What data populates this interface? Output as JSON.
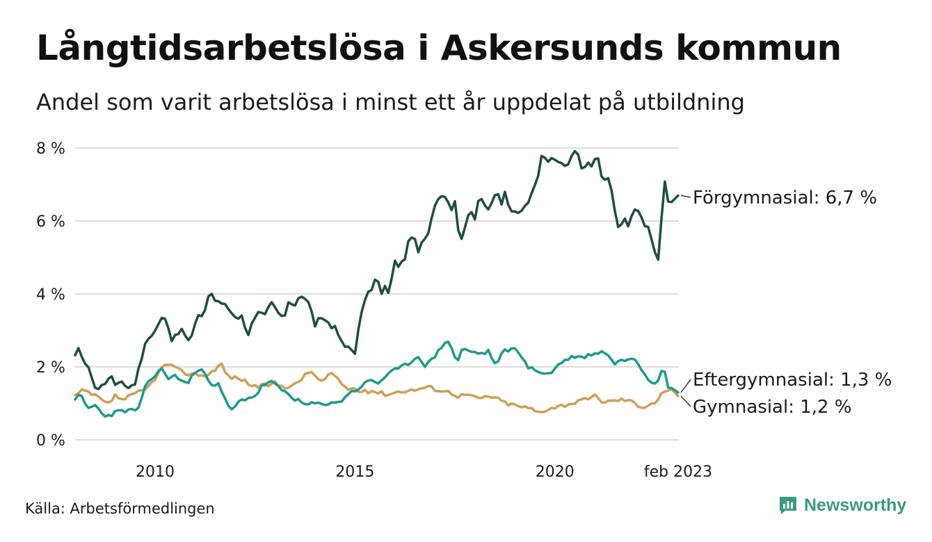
{
  "title": "Långtidsarbetslösa i Askersunds kommun",
  "subtitle": "Andel som varit arbetslösa i minst ett år uppdelat på utbildning",
  "source": "Källa: Arbetsförmedlingen",
  "brand": "Newsworthy",
  "colors": {
    "forgymnasial": "#1f4d41",
    "eftergymnasial": "#1b9a8c",
    "gymnasial": "#cda053",
    "grid": "#dcdcdc",
    "brand": "#3a9a7e"
  },
  "chart_data": {
    "type": "line",
    "x_unit": "month",
    "x_start": "2008-01",
    "x_end": "2023-02",
    "xlim": [
      2008.0,
      2023.1
    ],
    "ylim": [
      0,
      8
    ],
    "yticks": [
      {
        "value": 0,
        "label": "0 %"
      },
      {
        "value": 2,
        "label": "2 %"
      },
      {
        "value": 4,
        "label": "4 %"
      },
      {
        "value": 6,
        "label": "6 %"
      },
      {
        "value": 8,
        "label": "8 %"
      }
    ],
    "xticks": [
      {
        "value": 2010.0,
        "label": "2010"
      },
      {
        "value": 2015.0,
        "label": "2015"
      },
      {
        "value": 2020.0,
        "label": "2020"
      },
      {
        "value": 2023.083,
        "label": "feb 2023"
      }
    ],
    "grid": true,
    "series": [
      {
        "key": "forgymnasial",
        "name": "Förgymnasial",
        "end_label": "Förgymnasial: 6,7 %",
        "anchors": [
          [
            2008.0,
            2.3
          ],
          [
            2008.1,
            2.5
          ],
          [
            2008.2,
            2.2
          ],
          [
            2008.35,
            2.0
          ],
          [
            2008.45,
            1.5
          ],
          [
            2008.6,
            1.4
          ],
          [
            2008.75,
            1.55
          ],
          [
            2008.9,
            1.75
          ],
          [
            2009.0,
            1.45
          ],
          [
            2009.15,
            1.65
          ],
          [
            2009.3,
            1.4
          ],
          [
            2009.5,
            1.55
          ],
          [
            2009.65,
            2.2
          ],
          [
            2009.8,
            2.8
          ],
          [
            2009.95,
            2.9
          ],
          [
            2010.05,
            3.1
          ],
          [
            2010.2,
            3.4
          ],
          [
            2010.3,
            3.2
          ],
          [
            2010.4,
            2.7
          ],
          [
            2010.55,
            2.9
          ],
          [
            2010.7,
            3.15
          ],
          [
            2010.8,
            2.6
          ],
          [
            2010.95,
            3.0
          ],
          [
            2011.1,
            3.45
          ],
          [
            2011.2,
            3.3
          ],
          [
            2011.3,
            3.85
          ],
          [
            2011.4,
            4.0
          ],
          [
            2011.5,
            3.8
          ],
          [
            2011.7,
            3.75
          ],
          [
            2011.9,
            3.45
          ],
          [
            2012.05,
            3.3
          ],
          [
            2012.2,
            3.4
          ],
          [
            2012.3,
            2.8
          ],
          [
            2012.45,
            3.3
          ],
          [
            2012.6,
            3.55
          ],
          [
            2012.75,
            3.4
          ],
          [
            2012.9,
            3.85
          ],
          [
            2013.05,
            3.5
          ],
          [
            2013.2,
            3.3
          ],
          [
            2013.35,
            3.8
          ],
          [
            2013.5,
            3.7
          ],
          [
            2013.65,
            3.95
          ],
          [
            2013.8,
            3.9
          ],
          [
            2013.9,
            3.55
          ],
          [
            2014.0,
            3.1
          ],
          [
            2014.1,
            3.45
          ],
          [
            2014.25,
            3.3
          ],
          [
            2014.4,
            3.05
          ],
          [
            2014.5,
            3.1
          ],
          [
            2014.6,
            2.8
          ],
          [
            2014.75,
            2.6
          ],
          [
            2014.9,
            2.5
          ],
          [
            2015.0,
            2.3
          ],
          [
            2015.05,
            2.9
          ],
          [
            2015.15,
            3.4
          ],
          [
            2015.3,
            4.0
          ],
          [
            2015.45,
            4.2
          ],
          [
            2015.55,
            4.5
          ],
          [
            2015.65,
            3.95
          ],
          [
            2015.75,
            4.2
          ],
          [
            2015.85,
            4.0
          ],
          [
            2016.0,
            4.9
          ],
          [
            2016.1,
            4.7
          ],
          [
            2016.25,
            5.0
          ],
          [
            2016.35,
            5.55
          ],
          [
            2016.5,
            5.5
          ],
          [
            2016.6,
            5.1
          ],
          [
            2016.7,
            5.6
          ],
          [
            2016.8,
            5.45
          ],
          [
            2016.95,
            6.3
          ],
          [
            2017.05,
            6.65
          ],
          [
            2017.3,
            6.6
          ],
          [
            2017.4,
            6.2
          ],
          [
            2017.5,
            6.55
          ],
          [
            2017.6,
            5.6
          ],
          [
            2017.7,
            5.5
          ],
          [
            2017.85,
            6.3
          ],
          [
            2018.0,
            6.1
          ],
          [
            2018.1,
            6.65
          ],
          [
            2018.2,
            6.55
          ],
          [
            2018.3,
            6.2
          ],
          [
            2018.45,
            6.6
          ],
          [
            2018.55,
            6.9
          ],
          [
            2018.65,
            6.4
          ],
          [
            2018.75,
            6.85
          ],
          [
            2018.9,
            6.2
          ],
          [
            2019.0,
            6.3
          ],
          [
            2019.15,
            6.25
          ],
          [
            2019.35,
            6.5
          ],
          [
            2019.5,
            7.0
          ],
          [
            2019.6,
            7.3
          ],
          [
            2019.7,
            7.95
          ],
          [
            2019.8,
            7.55
          ],
          [
            2019.95,
            7.8
          ],
          [
            2020.1,
            7.55
          ],
          [
            2020.2,
            7.6
          ],
          [
            2020.3,
            7.5
          ],
          [
            2020.45,
            7.8
          ],
          [
            2020.55,
            7.95
          ],
          [
            2020.7,
            7.25
          ],
          [
            2020.8,
            7.7
          ],
          [
            2020.95,
            7.4
          ],
          [
            2021.05,
            7.95
          ],
          [
            2021.15,
            7.3
          ],
          [
            2021.25,
            7.1
          ],
          [
            2021.3,
            7.3
          ],
          [
            2021.45,
            6.75
          ],
          [
            2021.55,
            5.9
          ],
          [
            2021.65,
            5.85
          ],
          [
            2021.75,
            6.1
          ],
          [
            2021.85,
            5.8
          ],
          [
            2021.95,
            6.25
          ],
          [
            2022.05,
            6.4
          ],
          [
            2022.2,
            5.95
          ],
          [
            2022.35,
            5.8
          ],
          [
            2022.5,
            5.1
          ],
          [
            2022.6,
            4.95
          ],
          [
            2022.7,
            6.7
          ],
          [
            2022.78,
            7.4
          ],
          [
            2022.85,
            6.3
          ],
          [
            2022.95,
            6.7
          ],
          [
            2023.03,
            6.55
          ],
          [
            2023.083,
            6.7
          ]
        ]
      },
      {
        "key": "eftergymnasial",
        "name": "Eftergymnasial",
        "end_label": "Eftergymnasial: 1,3 %",
        "anchors": [
          [
            2008.0,
            1.15
          ],
          [
            2008.15,
            1.2
          ],
          [
            2008.3,
            0.85
          ],
          [
            2008.5,
            0.95
          ],
          [
            2008.65,
            0.75
          ],
          [
            2008.8,
            0.65
          ],
          [
            2009.0,
            0.75
          ],
          [
            2009.2,
            0.8
          ],
          [
            2009.4,
            0.8
          ],
          [
            2009.6,
            0.85
          ],
          [
            2009.8,
            1.6
          ],
          [
            2010.0,
            1.75
          ],
          [
            2010.2,
            2.0
          ],
          [
            2010.35,
            1.6
          ],
          [
            2010.5,
            1.8
          ],
          [
            2010.65,
            1.6
          ],
          [
            2010.8,
            1.55
          ],
          [
            2010.95,
            1.8
          ],
          [
            2011.1,
            1.9
          ],
          [
            2011.25,
            1.85
          ],
          [
            2011.4,
            1.55
          ],
          [
            2011.6,
            1.5
          ],
          [
            2011.8,
            0.95
          ],
          [
            2011.95,
            0.8
          ],
          [
            2012.1,
            1.05
          ],
          [
            2012.3,
            1.15
          ],
          [
            2012.5,
            1.2
          ],
          [
            2012.7,
            1.5
          ],
          [
            2012.9,
            1.6
          ],
          [
            2013.05,
            1.45
          ],
          [
            2013.2,
            1.35
          ],
          [
            2013.4,
            1.2
          ],
          [
            2013.6,
            1.05
          ],
          [
            2013.8,
            0.95
          ],
          [
            2014.0,
            1.0
          ],
          [
            2014.2,
            0.95
          ],
          [
            2014.4,
            1.05
          ],
          [
            2014.6,
            1.0
          ],
          [
            2014.8,
            1.25
          ],
          [
            2015.0,
            1.35
          ],
          [
            2015.2,
            1.5
          ],
          [
            2015.4,
            1.65
          ],
          [
            2015.6,
            1.55
          ],
          [
            2015.8,
            1.8
          ],
          [
            2016.0,
            1.9
          ],
          [
            2016.2,
            2.0
          ],
          [
            2016.4,
            2.15
          ],
          [
            2016.6,
            2.3
          ],
          [
            2016.75,
            2.05
          ],
          [
            2016.9,
            2.15
          ],
          [
            2017.1,
            2.45
          ],
          [
            2017.25,
            2.7
          ],
          [
            2017.4,
            2.6
          ],
          [
            2017.55,
            2.1
          ],
          [
            2017.7,
            2.55
          ],
          [
            2017.85,
            2.4
          ],
          [
            2018.0,
            2.4
          ],
          [
            2018.2,
            2.35
          ],
          [
            2018.35,
            2.45
          ],
          [
            2018.5,
            2.05
          ],
          [
            2018.7,
            2.4
          ],
          [
            2018.9,
            2.5
          ],
          [
            2019.1,
            2.45
          ],
          [
            2019.3,
            2.0
          ],
          [
            2019.5,
            1.9
          ],
          [
            2019.7,
            1.85
          ],
          [
            2019.9,
            1.8
          ],
          [
            2020.1,
            2.1
          ],
          [
            2020.3,
            2.2
          ],
          [
            2020.5,
            2.3
          ],
          [
            2020.7,
            2.25
          ],
          [
            2020.9,
            2.35
          ],
          [
            2021.1,
            2.4
          ],
          [
            2021.3,
            2.4
          ],
          [
            2021.45,
            2.1
          ],
          [
            2021.6,
            2.15
          ],
          [
            2021.8,
            2.2
          ],
          [
            2021.95,
            2.3
          ],
          [
            2022.1,
            2.1
          ],
          [
            2022.25,
            1.8
          ],
          [
            2022.4,
            1.6
          ],
          [
            2022.55,
            1.55
          ],
          [
            2022.65,
            1.95
          ],
          [
            2022.75,
            1.9
          ],
          [
            2022.85,
            1.4
          ],
          [
            2023.0,
            1.35
          ],
          [
            2023.083,
            1.3
          ]
        ]
      },
      {
        "key": "gymnasial",
        "name": "Gymnasial",
        "end_label": "Gymnasial: 1,2 %",
        "anchors": [
          [
            2008.0,
            1.2
          ],
          [
            2008.2,
            1.35
          ],
          [
            2008.4,
            1.25
          ],
          [
            2008.6,
            1.15
          ],
          [
            2008.8,
            0.95
          ],
          [
            2009.0,
            1.2
          ],
          [
            2009.2,
            1.1
          ],
          [
            2009.4,
            1.2
          ],
          [
            2009.6,
            1.3
          ],
          [
            2009.8,
            1.4
          ],
          [
            2010.0,
            1.7
          ],
          [
            2010.2,
            2.0
          ],
          [
            2010.35,
            2.1
          ],
          [
            2010.5,
            1.95
          ],
          [
            2010.7,
            1.85
          ],
          [
            2010.9,
            1.8
          ],
          [
            2011.1,
            1.8
          ],
          [
            2011.3,
            1.75
          ],
          [
            2011.5,
            1.95
          ],
          [
            2011.65,
            2.1
          ],
          [
            2011.8,
            1.75
          ],
          [
            2012.0,
            1.7
          ],
          [
            2012.2,
            1.65
          ],
          [
            2012.4,
            1.5
          ],
          [
            2012.6,
            1.45
          ],
          [
            2012.8,
            1.5
          ],
          [
            2013.0,
            1.55
          ],
          [
            2013.2,
            1.45
          ],
          [
            2013.4,
            1.5
          ],
          [
            2013.6,
            1.55
          ],
          [
            2013.8,
            1.9
          ],
          [
            2014.0,
            1.75
          ],
          [
            2014.2,
            1.6
          ],
          [
            2014.4,
            1.85
          ],
          [
            2014.6,
            1.6
          ],
          [
            2014.8,
            1.4
          ],
          [
            2015.0,
            1.4
          ],
          [
            2015.2,
            1.3
          ],
          [
            2015.4,
            1.35
          ],
          [
            2015.6,
            1.3
          ],
          [
            2015.8,
            1.25
          ],
          [
            2016.0,
            1.3
          ],
          [
            2016.2,
            1.35
          ],
          [
            2016.4,
            1.35
          ],
          [
            2016.6,
            1.4
          ],
          [
            2016.8,
            1.45
          ],
          [
            2017.0,
            1.4
          ],
          [
            2017.2,
            1.35
          ],
          [
            2017.4,
            1.3
          ],
          [
            2017.6,
            1.2
          ],
          [
            2017.8,
            1.25
          ],
          [
            2018.0,
            1.15
          ],
          [
            2018.2,
            1.15
          ],
          [
            2018.4,
            1.2
          ],
          [
            2018.6,
            1.1
          ],
          [
            2018.8,
            1.0
          ],
          [
            2019.0,
            0.95
          ],
          [
            2019.2,
            0.9
          ],
          [
            2019.4,
            0.85
          ],
          [
            2019.6,
            0.75
          ],
          [
            2019.8,
            0.85
          ],
          [
            2020.0,
            0.9
          ],
          [
            2020.2,
            0.95
          ],
          [
            2020.4,
            1.0
          ],
          [
            2020.6,
            1.05
          ],
          [
            2020.8,
            1.1
          ],
          [
            2021.0,
            1.2
          ],
          [
            2021.2,
            1.05
          ],
          [
            2021.4,
            1.05
          ],
          [
            2021.6,
            1.1
          ],
          [
            2021.8,
            1.1
          ],
          [
            2022.0,
            1.0
          ],
          [
            2022.2,
            0.9
          ],
          [
            2022.4,
            1.0
          ],
          [
            2022.55,
            1.05
          ],
          [
            2022.7,
            1.3
          ],
          [
            2022.85,
            1.4
          ],
          [
            2023.0,
            1.3
          ],
          [
            2023.083,
            1.2
          ]
        ]
      }
    ]
  }
}
